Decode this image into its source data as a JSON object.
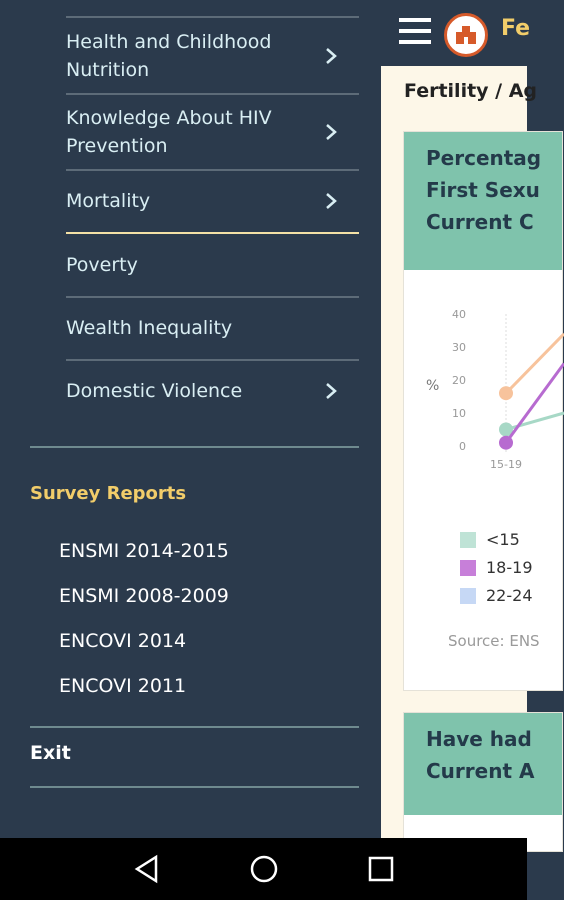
{
  "drawer": {
    "menu_items": [
      {
        "label_line1": "Health and Childhood",
        "label_line2": "Nutrition",
        "has_submenu": true
      },
      {
        "label_line1": "Knowledge About HIV",
        "label_line2": "Prevention",
        "has_submenu": true
      },
      {
        "label_line1": "Mortality",
        "label_line2": "",
        "has_submenu": true
      },
      {
        "label_line1": "Poverty",
        "label_line2": "",
        "has_submenu": false
      },
      {
        "label_line1": "Wealth Inequality",
        "label_line2": "",
        "has_submenu": false
      },
      {
        "label_line1": "Domestic Violence",
        "label_line2": "",
        "has_submenu": true
      }
    ],
    "section_title": "Survey Reports",
    "reports": [
      "ENSMI 2014-2015",
      "ENSMI 2008-2009",
      "ENCOVI 2014",
      "ENCOVI 2011"
    ],
    "exit_label": "Exit"
  },
  "main": {
    "appbar_title": "Fe",
    "breadcrumb": "Fertility / Ag",
    "card1": {
      "title_lines": [
        "Percentag",
        "First Sexu",
        "Current C"
      ],
      "chart": {
        "y_ticks": [
          "40",
          "30",
          "20",
          "10",
          "0"
        ],
        "y_unit": "%",
        "x_first_tick": "15-19"
      },
      "legend": [
        {
          "label": "<15",
          "color": "#bfe3d6"
        },
        {
          "label": "18-19",
          "color": "#c77fd9"
        },
        {
          "label": "22-24",
          "color": "#c6d8f5"
        }
      ],
      "source": "Source: ENS"
    },
    "card2": {
      "title_lines": [
        "Have had",
        "Current A"
      ]
    }
  },
  "colors": {
    "drawer_bg": "#2b3a4c",
    "accent_yellow": "#f2cd6a",
    "card_head": "#7fc3ac"
  },
  "chart_data": {
    "type": "line",
    "x": [
      "15-19"
    ],
    "series": [
      {
        "name": "<15",
        "values": [
          5
        ]
      },
      {
        "name": "18-19",
        "values": [
          1
        ]
      },
      {
        "name": "22-24",
        "values": [
          16
        ]
      }
    ],
    "ylabel": "%",
    "ylim": [
      0,
      40
    ]
  }
}
